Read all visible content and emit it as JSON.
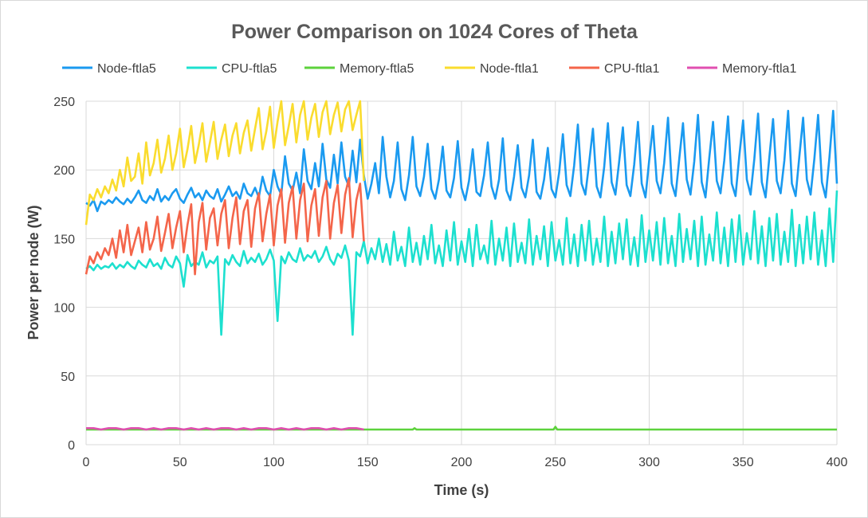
{
  "chart_data": {
    "type": "line",
    "title": "Power Comparison on 1024 Cores of Theta",
    "xlabel": "Time (s)",
    "ylabel": "Power per node (W)",
    "xlim": [
      0,
      400
    ],
    "ylim": [
      0,
      250
    ],
    "xticks": [
      0,
      50,
      100,
      150,
      200,
      250,
      300,
      350,
      400
    ],
    "yticks": [
      0,
      50,
      100,
      150,
      200,
      250
    ],
    "grid": true,
    "legend_position": "top",
    "series": [
      {
        "name": "Node-ftla5",
        "color": "#1a9af0",
        "x": [
          0,
          2,
          4,
          6,
          8,
          10,
          12,
          14,
          16,
          18,
          20,
          22,
          24,
          26,
          28,
          30,
          32,
          34,
          36,
          38,
          40,
          42,
          44,
          46,
          48,
          50,
          52,
          54,
          56,
          58,
          60,
          62,
          64,
          66,
          68,
          70,
          72,
          74,
          76,
          78,
          80,
          82,
          84,
          86,
          88,
          90,
          92,
          94,
          96,
          98,
          100,
          102,
          104,
          106,
          108,
          110,
          112,
          114,
          116,
          118,
          120,
          122,
          124,
          126,
          128,
          130,
          132,
          134,
          136,
          138,
          140,
          142,
          144,
          146,
          148,
          150,
          152,
          154,
          156,
          158,
          160,
          162,
          164,
          166,
          168,
          170,
          172,
          174,
          176,
          178,
          180,
          182,
          184,
          186,
          188,
          190,
          192,
          194,
          196,
          198,
          200,
          202,
          204,
          206,
          208,
          210,
          212,
          214,
          216,
          218,
          220,
          222,
          224,
          226,
          228,
          230,
          232,
          234,
          236,
          238,
          240,
          242,
          244,
          246,
          248,
          250,
          252,
          254,
          256,
          258,
          260,
          262,
          264,
          266,
          268,
          270,
          272,
          274,
          276,
          278,
          280,
          282,
          284,
          286,
          288,
          290,
          292,
          294,
          296,
          298,
          300,
          302,
          304,
          306,
          308,
          310,
          312,
          314,
          316,
          318,
          320,
          322,
          324,
          326,
          328,
          330,
          332,
          334,
          336,
          338,
          340,
          342,
          344,
          346,
          348,
          350,
          352,
          354,
          356,
          358,
          360,
          362,
          364,
          366,
          368,
          370,
          372,
          374,
          376,
          378,
          380,
          382,
          384,
          386,
          388,
          390,
          392,
          394,
          396,
          398,
          400
        ],
        "y": [
          176,
          174,
          178,
          170,
          177,
          175,
          178,
          176,
          180,
          177,
          175,
          179,
          176,
          180,
          185,
          178,
          176,
          181,
          178,
          186,
          177,
          181,
          178,
          183,
          186,
          179,
          176,
          182,
          187,
          180,
          183,
          178,
          185,
          181,
          179,
          186,
          177,
          182,
          188,
          181,
          184,
          179,
          190,
          183,
          181,
          187,
          180,
          195,
          185,
          181,
          200,
          188,
          182,
          210,
          190,
          185,
          198,
          183,
          215,
          192,
          186,
          205,
          188,
          219,
          193,
          187,
          211,
          190,
          220,
          195,
          188,
          214,
          191,
          222,
          196,
          179,
          190,
          205,
          183,
          224,
          195,
          180,
          192,
          220,
          186,
          178,
          196,
          224,
          188,
          181,
          195,
          219,
          186,
          179,
          193,
          217,
          185,
          180,
          194,
          221,
          187,
          178,
          192,
          215,
          184,
          181,
          196,
          220,
          188,
          179,
          193,
          223,
          185,
          178,
          195,
          218,
          187,
          180,
          196,
          222,
          184,
          179,
          193,
          216,
          186,
          180,
          198,
          226,
          189,
          181,
          203,
          233,
          190,
          182,
          205,
          230,
          188,
          180,
          202,
          234,
          191,
          182,
          206,
          231,
          189,
          181,
          204,
          235,
          190,
          180,
          207,
          232,
          192,
          183,
          205,
          238,
          190,
          181,
          208,
          234,
          193,
          182,
          206,
          240,
          191,
          180,
          209,
          235,
          192,
          183,
          207,
          239,
          190,
          181,
          210,
          236,
          193,
          182,
          208,
          241,
          191,
          180,
          209,
          237,
          192,
          183,
          207,
          243,
          190,
          181,
          210,
          238,
          193,
          182,
          208,
          240,
          191,
          180,
          209,
          243,
          190
        ]
      },
      {
        "name": "CPU-ftla5",
        "color": "#1de0cf",
        "x": [
          0,
          2,
          4,
          6,
          8,
          10,
          12,
          14,
          16,
          18,
          20,
          22,
          24,
          26,
          28,
          30,
          32,
          34,
          36,
          38,
          40,
          42,
          44,
          46,
          48,
          50,
          52,
          54,
          56,
          58,
          60,
          62,
          64,
          66,
          68,
          70,
          72,
          74,
          76,
          78,
          80,
          82,
          84,
          86,
          88,
          90,
          92,
          94,
          96,
          98,
          100,
          102,
          104,
          106,
          108,
          110,
          112,
          114,
          116,
          118,
          120,
          122,
          124,
          126,
          128,
          130,
          132,
          134,
          136,
          138,
          140,
          142,
          144,
          146,
          148,
          150,
          152,
          154,
          156,
          158,
          160,
          162,
          164,
          166,
          168,
          170,
          172,
          174,
          176,
          178,
          180,
          182,
          184,
          186,
          188,
          190,
          192,
          194,
          196,
          198,
          200,
          202,
          204,
          206,
          208,
          210,
          212,
          214,
          216,
          218,
          220,
          222,
          224,
          226,
          228,
          230,
          232,
          234,
          236,
          238,
          240,
          242,
          244,
          246,
          248,
          250,
          252,
          254,
          256,
          258,
          260,
          262,
          264,
          266,
          268,
          270,
          272,
          274,
          276,
          278,
          280,
          282,
          284,
          286,
          288,
          290,
          292,
          294,
          296,
          298,
          300,
          302,
          304,
          306,
          308,
          310,
          312,
          314,
          316,
          318,
          320,
          322,
          324,
          326,
          328,
          330,
          332,
          334,
          336,
          338,
          340,
          342,
          344,
          346,
          348,
          350,
          352,
          354,
          356,
          358,
          360,
          362,
          364,
          366,
          368,
          370,
          372,
          374,
          376,
          378,
          380,
          382,
          384,
          386,
          388,
          390,
          392,
          394,
          396,
          398,
          400
        ],
        "y": [
          128,
          130,
          127,
          131,
          128,
          130,
          129,
          132,
          128,
          131,
          129,
          133,
          130,
          128,
          134,
          131,
          129,
          135,
          130,
          132,
          128,
          136,
          131,
          129,
          137,
          132,
          115,
          138,
          130,
          133,
          131,
          140,
          129,
          134,
          132,
          137,
          80,
          135,
          131,
          138,
          133,
          130,
          141,
          132,
          136,
          133,
          139,
          131,
          135,
          142,
          134,
          90,
          137,
          132,
          140,
          135,
          133,
          143,
          134,
          138,
          136,
          141,
          133,
          137,
          144,
          135,
          131,
          139,
          136,
          145,
          134,
          80,
          140,
          137,
          148,
          132,
          143,
          135,
          150,
          133,
          146,
          131,
          155,
          134,
          144,
          130,
          158,
          133,
          147,
          131,
          152,
          135,
          160,
          132,
          145,
          130,
          156,
          134,
          162,
          131,
          148,
          133,
          157,
          130,
          160,
          135,
          145,
          132,
          163,
          131,
          150,
          134,
          158,
          130,
          161,
          133,
          147,
          132,
          164,
          131,
          152,
          135,
          159,
          130,
          162,
          134,
          149,
          131,
          165,
          132,
          153,
          130,
          160,
          134,
          163,
          131,
          150,
          133,
          166,
          130,
          155,
          132,
          161,
          135,
          164,
          131,
          151,
          130,
          167,
          133,
          156,
          134,
          162,
          131,
          165,
          132,
          152,
          130,
          168,
          133,
          157,
          135,
          163,
          130,
          166,
          131,
          153,
          134,
          169,
          132,
          158,
          130,
          164,
          133,
          167,
          131,
          154,
          135,
          170,
          132,
          159,
          130,
          165,
          134,
          168,
          131,
          155,
          133,
          171,
          130,
          160,
          132,
          166,
          135,
          169,
          131,
          156,
          130,
          172,
          133,
          185
        ]
      },
      {
        "name": "Memory-ftla5",
        "color": "#5dd23c",
        "x": [
          0,
          10,
          20,
          30,
          40,
          50,
          60,
          70,
          80,
          90,
          100,
          110,
          120,
          130,
          140,
          150,
          160,
          170,
          174,
          175,
          176,
          180,
          200,
          220,
          240,
          249,
          250,
          251,
          260,
          280,
          300,
          320,
          340,
          360,
          380,
          400
        ],
        "y": [
          11,
          11,
          11,
          11,
          11,
          11,
          11,
          11,
          11,
          11,
          11,
          11,
          11,
          11,
          11,
          11,
          11,
          11,
          11,
          12,
          11,
          11,
          11,
          11,
          11,
          11,
          13,
          11,
          11,
          11,
          11,
          11,
          11,
          11,
          11,
          11
        ]
      },
      {
        "name": "Node-ftla1",
        "color": "#fadc2e",
        "x": [
          0,
          2,
          4,
          6,
          8,
          10,
          12,
          14,
          16,
          18,
          20,
          22,
          24,
          26,
          28,
          30,
          32,
          34,
          36,
          38,
          40,
          42,
          44,
          46,
          48,
          50,
          52,
          54,
          56,
          58,
          60,
          62,
          64,
          66,
          68,
          70,
          72,
          74,
          76,
          78,
          80,
          82,
          84,
          86,
          88,
          90,
          92,
          94,
          96,
          98,
          100,
          102,
          104,
          106,
          108,
          110,
          112,
          114,
          116,
          118,
          120,
          122,
          124,
          126,
          128,
          130,
          132,
          134,
          136,
          138,
          140,
          142,
          144,
          146,
          148
        ],
        "y": [
          160,
          182,
          178,
          186,
          180,
          188,
          183,
          193,
          185,
          200,
          188,
          209,
          192,
          195,
          212,
          190,
          220,
          196,
          205,
          222,
          198,
          208,
          225,
          200,
          212,
          230,
          202,
          215,
          232,
          205,
          218,
          234,
          206,
          220,
          235,
          208,
          222,
          233,
          210,
          225,
          234,
          212,
          227,
          236,
          214,
          230,
          245,
          215,
          228,
          246,
          216,
          235,
          250,
          218,
          232,
          248,
          220,
          240,
          250,
          222,
          238,
          248,
          224,
          242,
          250,
          226,
          240,
          249,
          228,
          244,
          250,
          229,
          240,
          250,
          192
        ]
      },
      {
        "name": "CPU-ftla1",
        "color": "#f4654a",
        "x": [
          0,
          2,
          4,
          6,
          8,
          10,
          12,
          14,
          16,
          18,
          20,
          22,
          24,
          26,
          28,
          30,
          32,
          34,
          36,
          38,
          40,
          42,
          44,
          46,
          48,
          50,
          52,
          54,
          56,
          58,
          60,
          62,
          64,
          66,
          68,
          70,
          72,
          74,
          76,
          78,
          80,
          82,
          84,
          86,
          88,
          90,
          92,
          94,
          96,
          98,
          100,
          102,
          104,
          106,
          108,
          110,
          112,
          114,
          116,
          118,
          120,
          122,
          124,
          126,
          128,
          130,
          132,
          134,
          136,
          138,
          140,
          142,
          144,
          146,
          148
        ],
        "y": [
          124,
          137,
          132,
          140,
          135,
          143,
          138,
          150,
          136,
          156,
          140,
          160,
          138,
          148,
          158,
          140,
          162,
          142,
          150,
          166,
          141,
          154,
          168,
          143,
          158,
          170,
          140,
          160,
          175,
          124,
          162,
          176,
          142,
          165,
          172,
          145,
          168,
          178,
          143,
          165,
          180,
          146,
          170,
          178,
          144,
          172,
          183,
          148,
          168,
          182,
          145,
          174,
          186,
          147,
          176,
          188,
          150,
          178,
          190,
          148,
          174,
          186,
          152,
          180,
          192,
          150,
          176,
          189,
          154,
          182,
          194,
          151,
          178,
          190,
          148
        ]
      },
      {
        "name": "Memory-ftla1",
        "color": "#e04fb0",
        "x": [
          0,
          4,
          8,
          12,
          16,
          20,
          24,
          28,
          32,
          36,
          40,
          44,
          48,
          52,
          56,
          60,
          64,
          68,
          72,
          76,
          80,
          84,
          88,
          92,
          96,
          100,
          104,
          108,
          112,
          116,
          120,
          124,
          128,
          132,
          136,
          140,
          144,
          148
        ],
        "y": [
          12,
          12,
          11,
          12,
          12,
          11,
          12,
          12,
          11,
          12,
          11,
          12,
          12,
          11,
          12,
          11,
          12,
          11,
          12,
          12,
          11,
          12,
          11,
          12,
          12,
          11,
          12,
          11,
          12,
          11,
          12,
          12,
          11,
          12,
          11,
          12,
          12,
          11
        ]
      }
    ]
  }
}
